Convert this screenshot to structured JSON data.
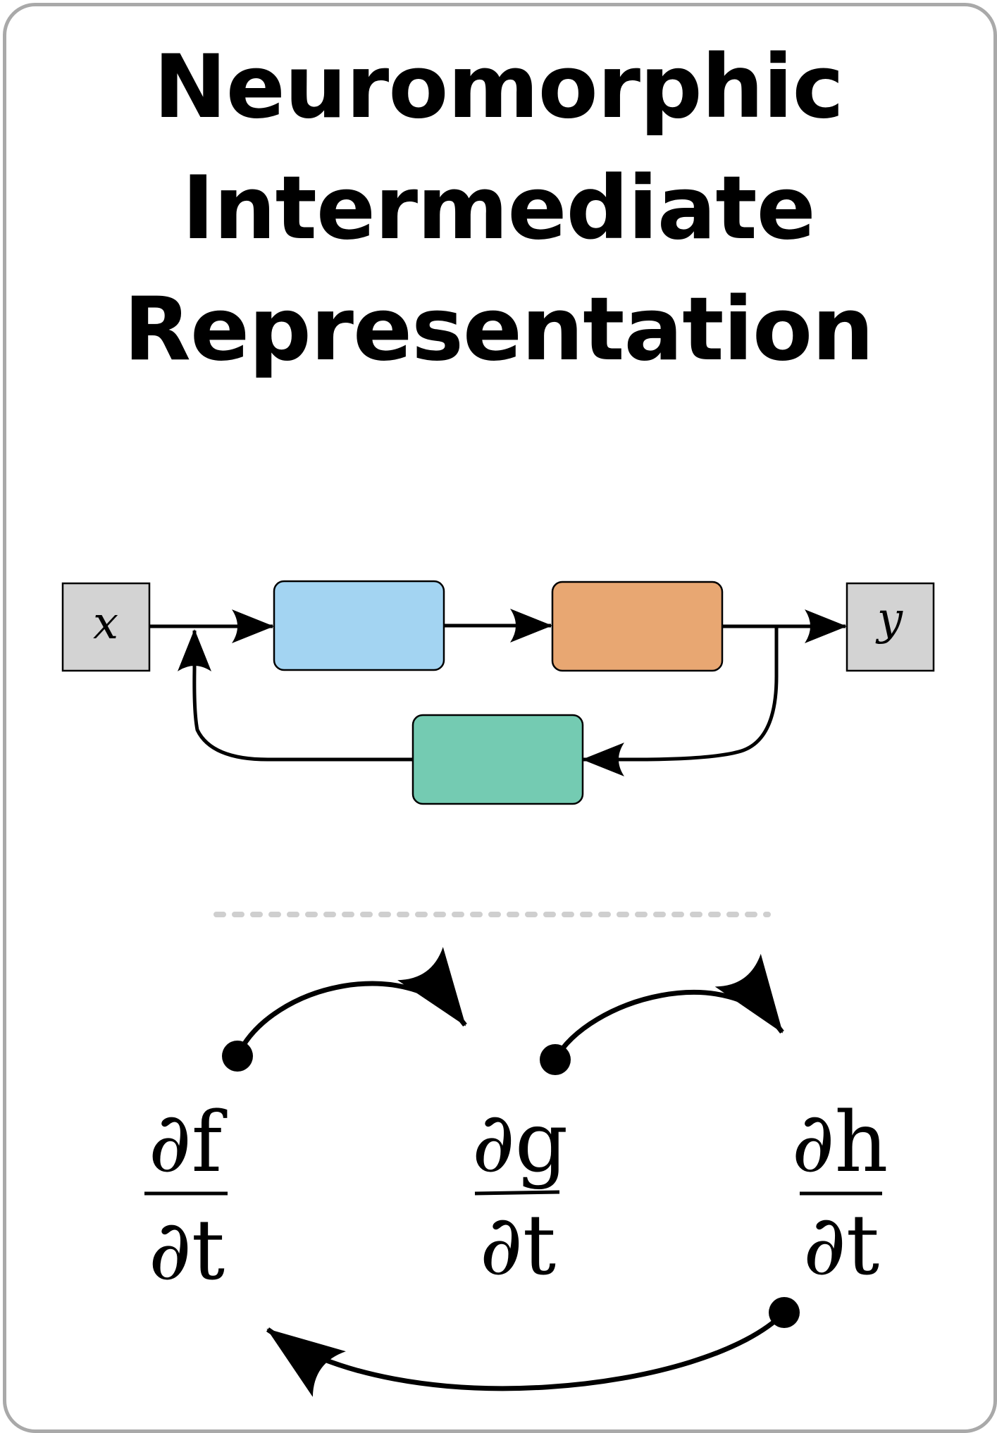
{
  "title": {
    "line1": "Neuromorphic",
    "line2": "Intermediate",
    "line3": "Representation"
  },
  "block_diagram": {
    "input_label": "x",
    "output_label": "y",
    "colors": {
      "io_box": "#d3d3d3",
      "block1": "#a3d4f2",
      "block2": "#e8a772",
      "feedback": "#74cbb2"
    }
  },
  "derivatives": [
    {
      "numerator": "∂f",
      "denominator": "∂t"
    },
    {
      "numerator": "∂g",
      "denominator": "∂t"
    },
    {
      "numerator": "∂h",
      "denominator": "∂t"
    }
  ]
}
